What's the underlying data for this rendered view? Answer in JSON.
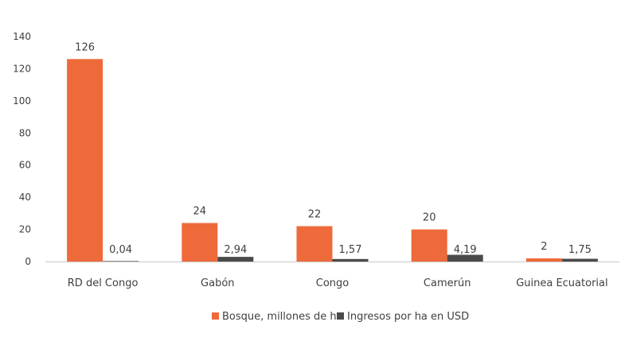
{
  "chart_data": {
    "type": "bar",
    "categories": [
      "RD del Congo",
      "Gabón",
      "Congo",
      "Camerún",
      "Guinea Ecuatorial"
    ],
    "series": [
      {
        "name": "Bosque, millones de ha",
        "color": "#ee6a3a",
        "values": [
          126,
          24,
          22,
          20,
          2
        ],
        "labels": [
          "126",
          "24",
          "22",
          "20",
          "2"
        ]
      },
      {
        "name": "Ingresos por ha en USD",
        "color": "#4a4a4a",
        "values": [
          0.04,
          2.94,
          1.57,
          4.19,
          1.75
        ],
        "labels": [
          "0,04",
          "2,94",
          "1,57",
          "4,19",
          "1,75"
        ]
      }
    ],
    "ylim": [
      0,
      140
    ],
    "yticks": [
      0,
      20,
      40,
      60,
      80,
      100,
      120,
      140
    ],
    "grid": false,
    "legend": "bottom-center",
    "title": "",
    "xlabel": "",
    "ylabel": ""
  }
}
